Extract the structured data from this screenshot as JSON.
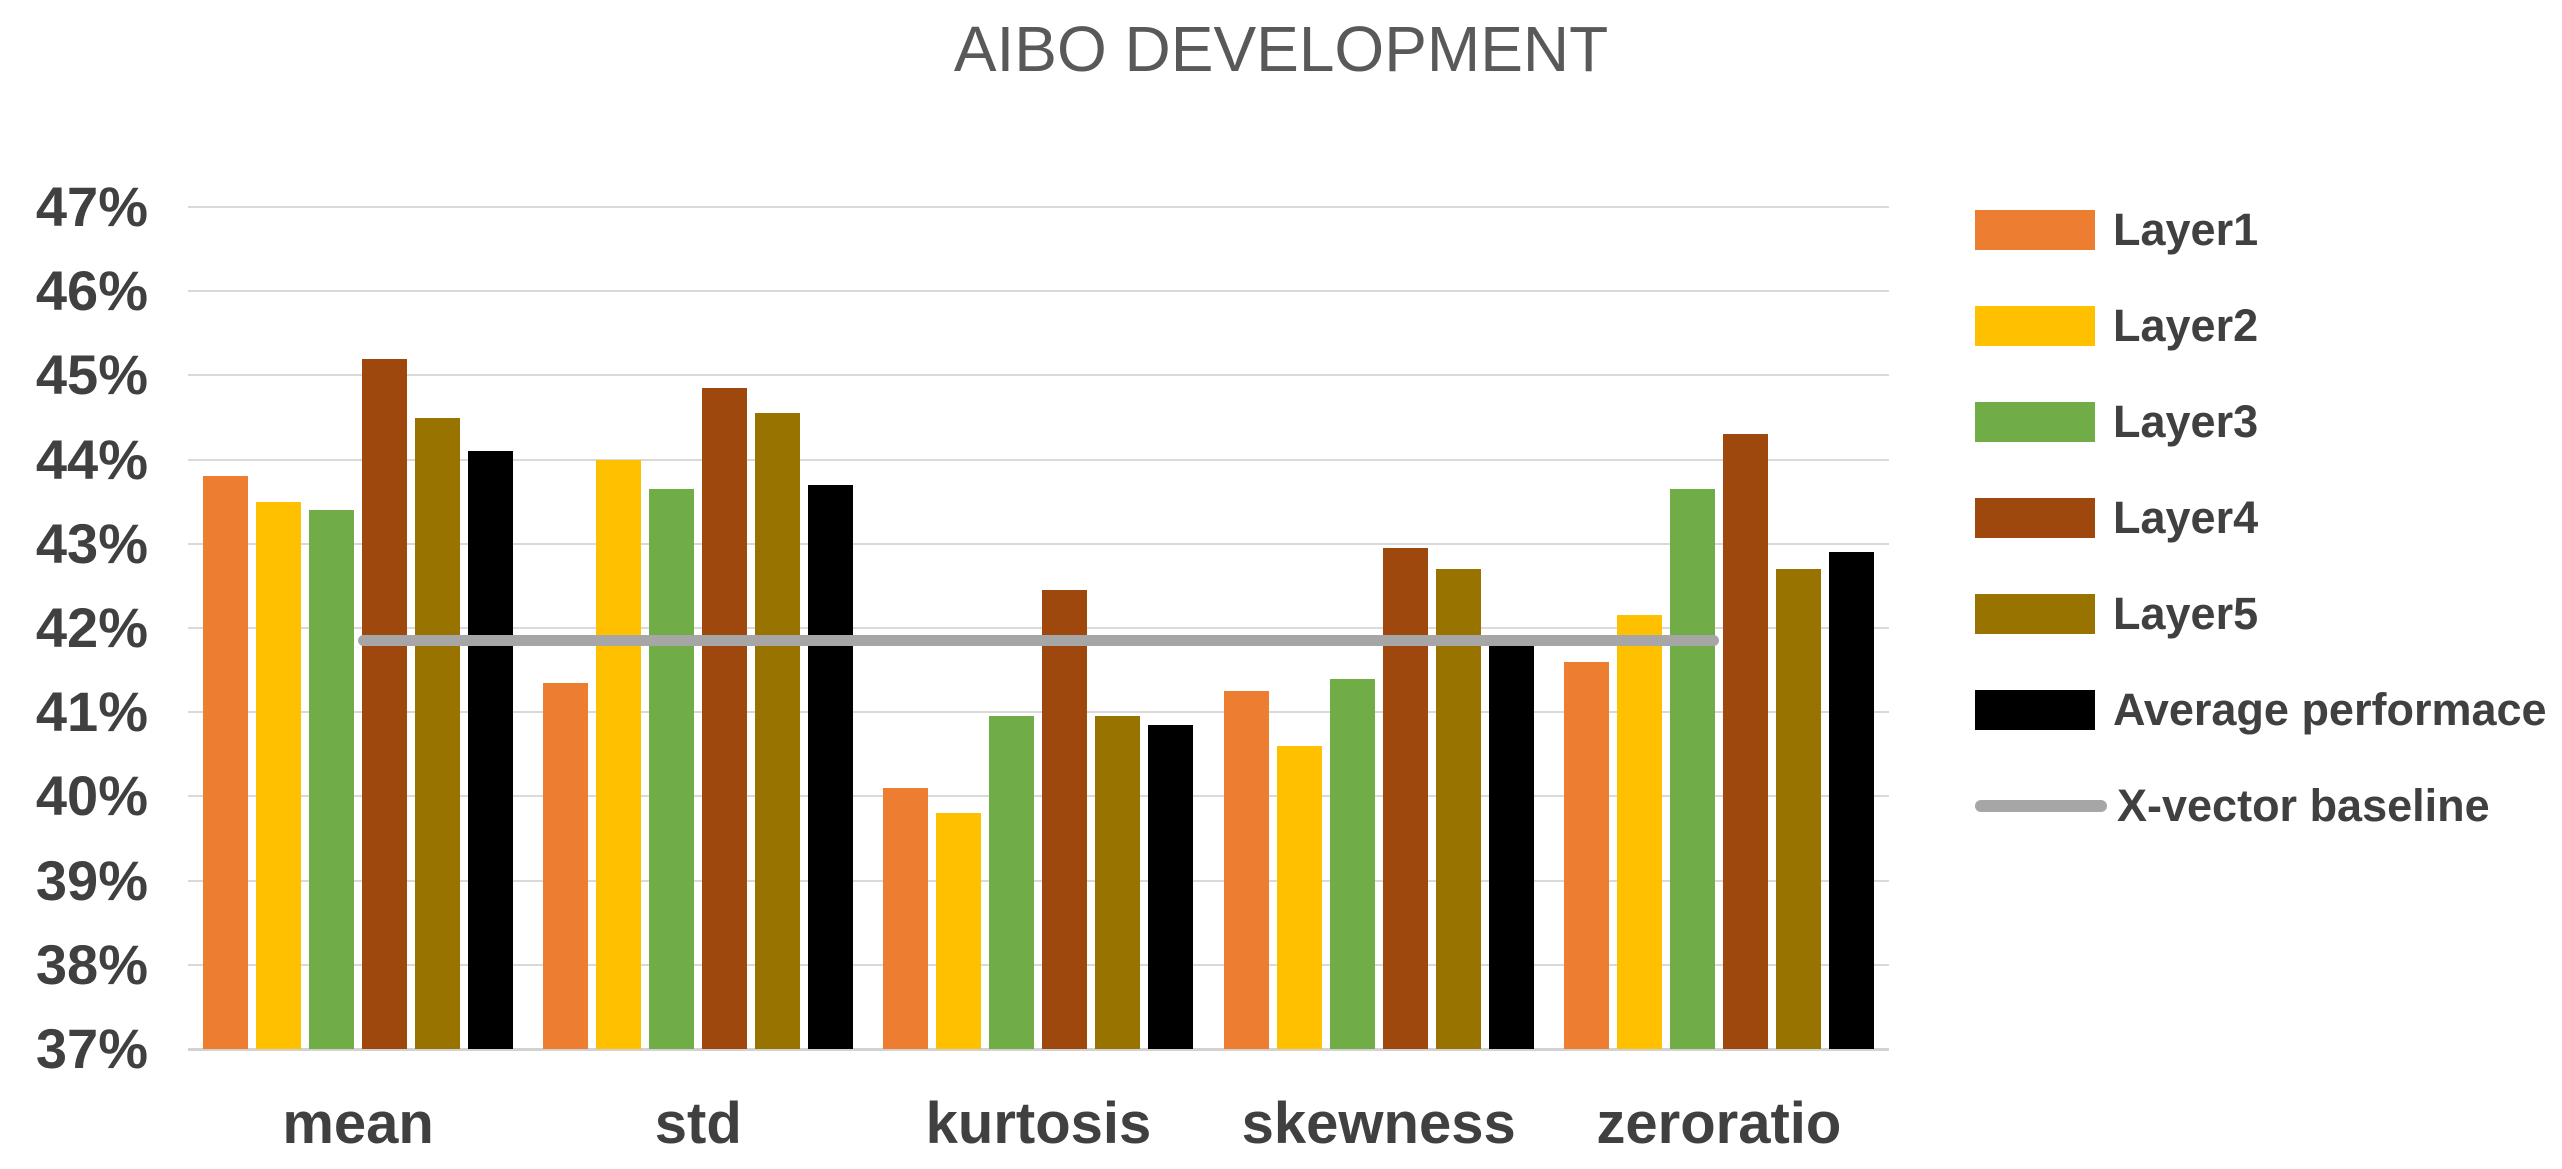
{
  "title": "AIBO DEVELOPMENT",
  "chart_data": {
    "type": "bar",
    "title": "AIBO DEVELOPMENT",
    "categories": [
      "mean",
      "std",
      "kurtosis",
      "skewness",
      "zeroratio"
    ],
    "series": [
      {
        "name": "Layer1",
        "color": "#ED7D31",
        "values": [
          43.8,
          41.35,
          40.1,
          41.25,
          41.6
        ]
      },
      {
        "name": "Layer2",
        "color": "#FFC000",
        "values": [
          43.5,
          44.0,
          39.8,
          40.6,
          42.15
        ]
      },
      {
        "name": "Layer3",
        "color": "#70AD47",
        "values": [
          43.4,
          43.65,
          40.95,
          41.4,
          43.65
        ]
      },
      {
        "name": "Layer4",
        "color": "#9E480E",
        "values": [
          45.2,
          44.85,
          42.45,
          42.95,
          44.3
        ]
      },
      {
        "name": "Layer5",
        "color": "#997300",
        "values": [
          44.5,
          44.55,
          40.95,
          42.7,
          42.7
        ]
      },
      {
        "name": "Average performace",
        "color": "#000000",
        "values": [
          44.1,
          43.7,
          40.85,
          41.8,
          42.9
        ]
      }
    ],
    "baseline": {
      "name": "X-vector baseline",
      "color": "#A6A6A6",
      "value": 41.85
    },
    "ylim": [
      37,
      47
    ],
    "ytick_values": [
      47,
      46,
      45,
      44,
      43,
      42,
      41,
      40,
      39,
      38,
      37
    ],
    "yticks": [
      "47%",
      "46%",
      "45%",
      "44%",
      "43%",
      "42%",
      "41%",
      "40%",
      "39%",
      "38%",
      "37%"
    ],
    "grid": true,
    "legend_position": "right",
    "gridline_color": "#D9D9D9",
    "label_color": "#404040",
    "title_color": "#595959"
  }
}
